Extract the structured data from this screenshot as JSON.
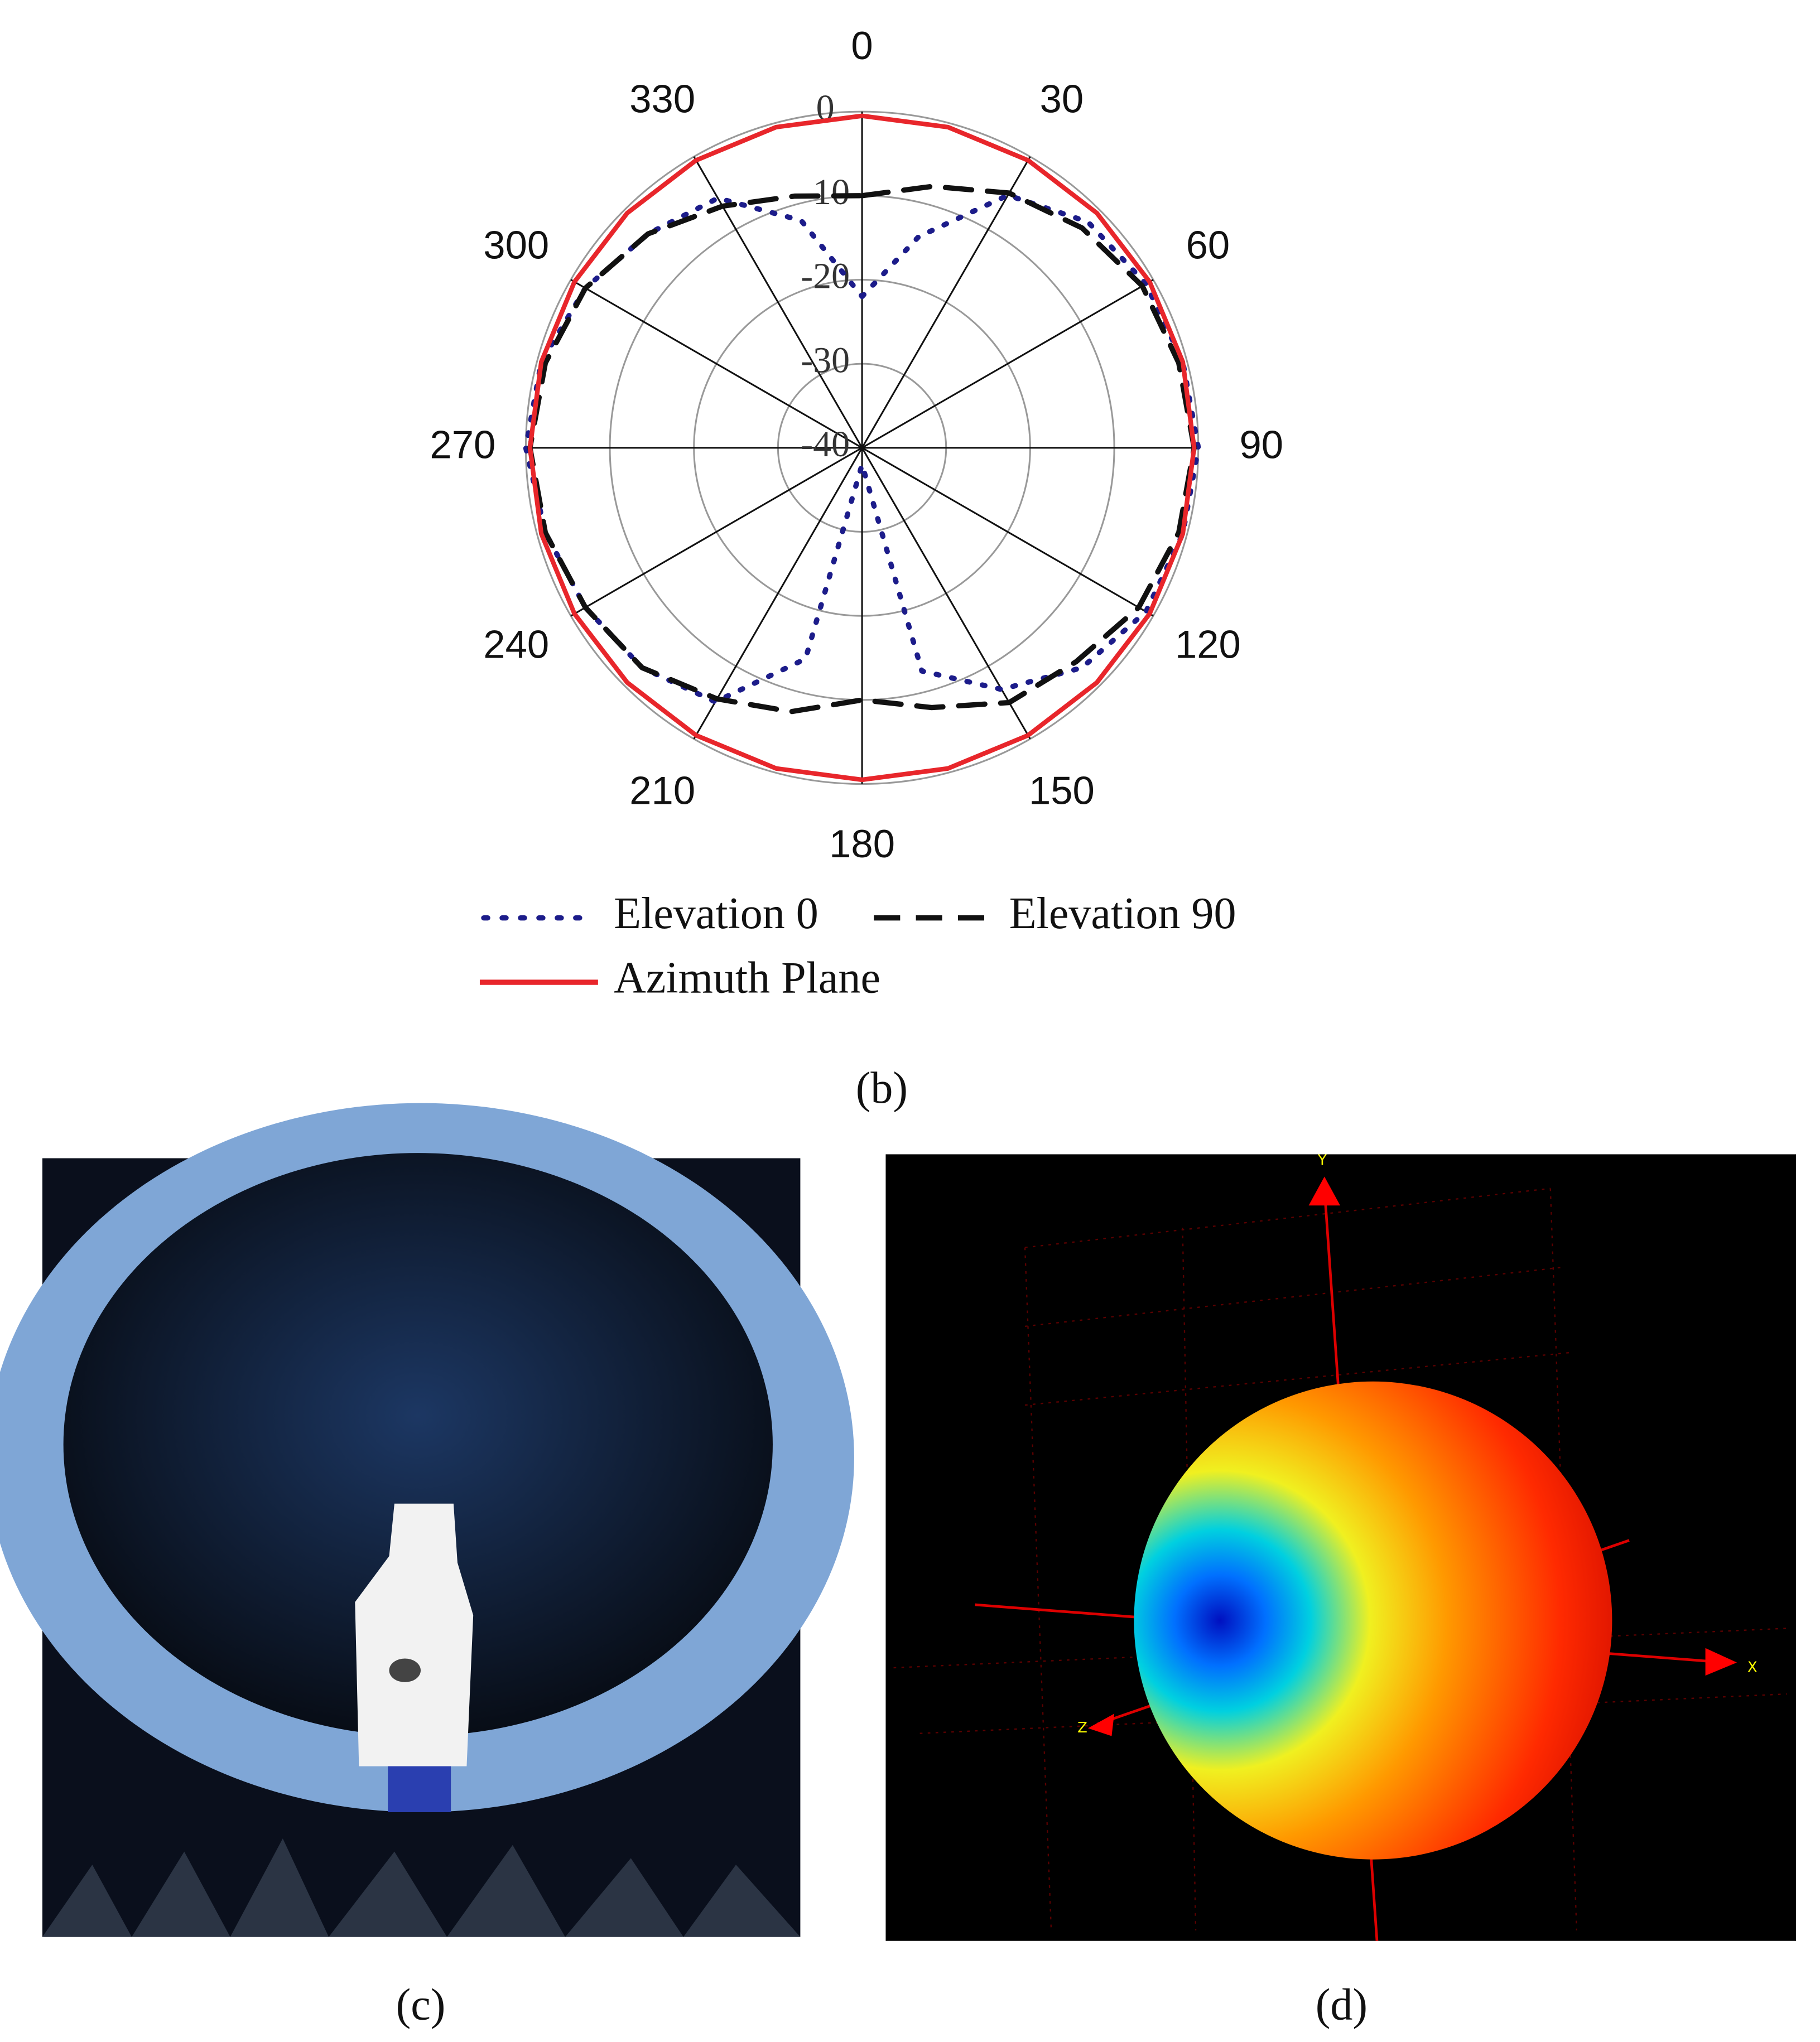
{
  "chart_data": {
    "type": "polar",
    "x": [
      0,
      15,
      30,
      45,
      60,
      75,
      90,
      105,
      120,
      135,
      150,
      165,
      180,
      195,
      210,
      225,
      240,
      255,
      270,
      285,
      300,
      315,
      330,
      345
    ],
    "series": [
      {
        "name": "Elevation 0",
        "color": "#1c1c8a",
        "line_style": "dotted",
        "values": [
          -22,
          -14,
          -5.3,
          -2,
          -1,
          -0.5,
          0,
          -0.5,
          -1,
          -3,
          -6.8,
          -12.5,
          -38,
          -14,
          -5.1,
          -3,
          -2,
          -1,
          0,
          -0.5,
          -2,
          -4,
          -5.7,
          -12
        ]
      },
      {
        "name": "Elevation 90",
        "color": "#111111",
        "line_style": "dashed",
        "values": [
          -10,
          -7.8,
          -5,
          -3,
          -1.5,
          -1,
          -0.5,
          -1,
          -2,
          -4,
          -5,
          -8,
          -10,
          -7.5,
          -5.5,
          -3,
          -2,
          -1,
          -0.5,
          -1,
          -2,
          -4,
          -6.8,
          -9
        ]
      },
      {
        "name": "Azimuth Plane",
        "color": "#e8262b",
        "line_style": "solid",
        "values": [
          -0.5,
          -0.5,
          -0.5,
          -0.5,
          -0.5,
          -0.5,
          -0.5,
          -0.5,
          -0.5,
          -0.5,
          -0.5,
          -0.5,
          -0.5,
          -0.5,
          -0.5,
          -0.5,
          -0.5,
          -0.5,
          -0.5,
          -0.5,
          -0.5,
          -0.5,
          -0.5,
          -0.5
        ]
      }
    ],
    "ylim": [
      -40,
      0
    ],
    "yticks": [
      0,
      -10,
      -20,
      -30,
      -40
    ],
    "xticks": [
      0,
      30,
      60,
      90,
      120,
      150,
      180,
      210,
      240,
      270,
      300,
      330
    ],
    "grid": true,
    "caption": "(b)"
  },
  "images": {
    "c": {
      "caption": "(c)"
    },
    "d": {
      "caption": "(d)",
      "axis_labels": [
        "Y",
        "X",
        "Z"
      ]
    }
  }
}
